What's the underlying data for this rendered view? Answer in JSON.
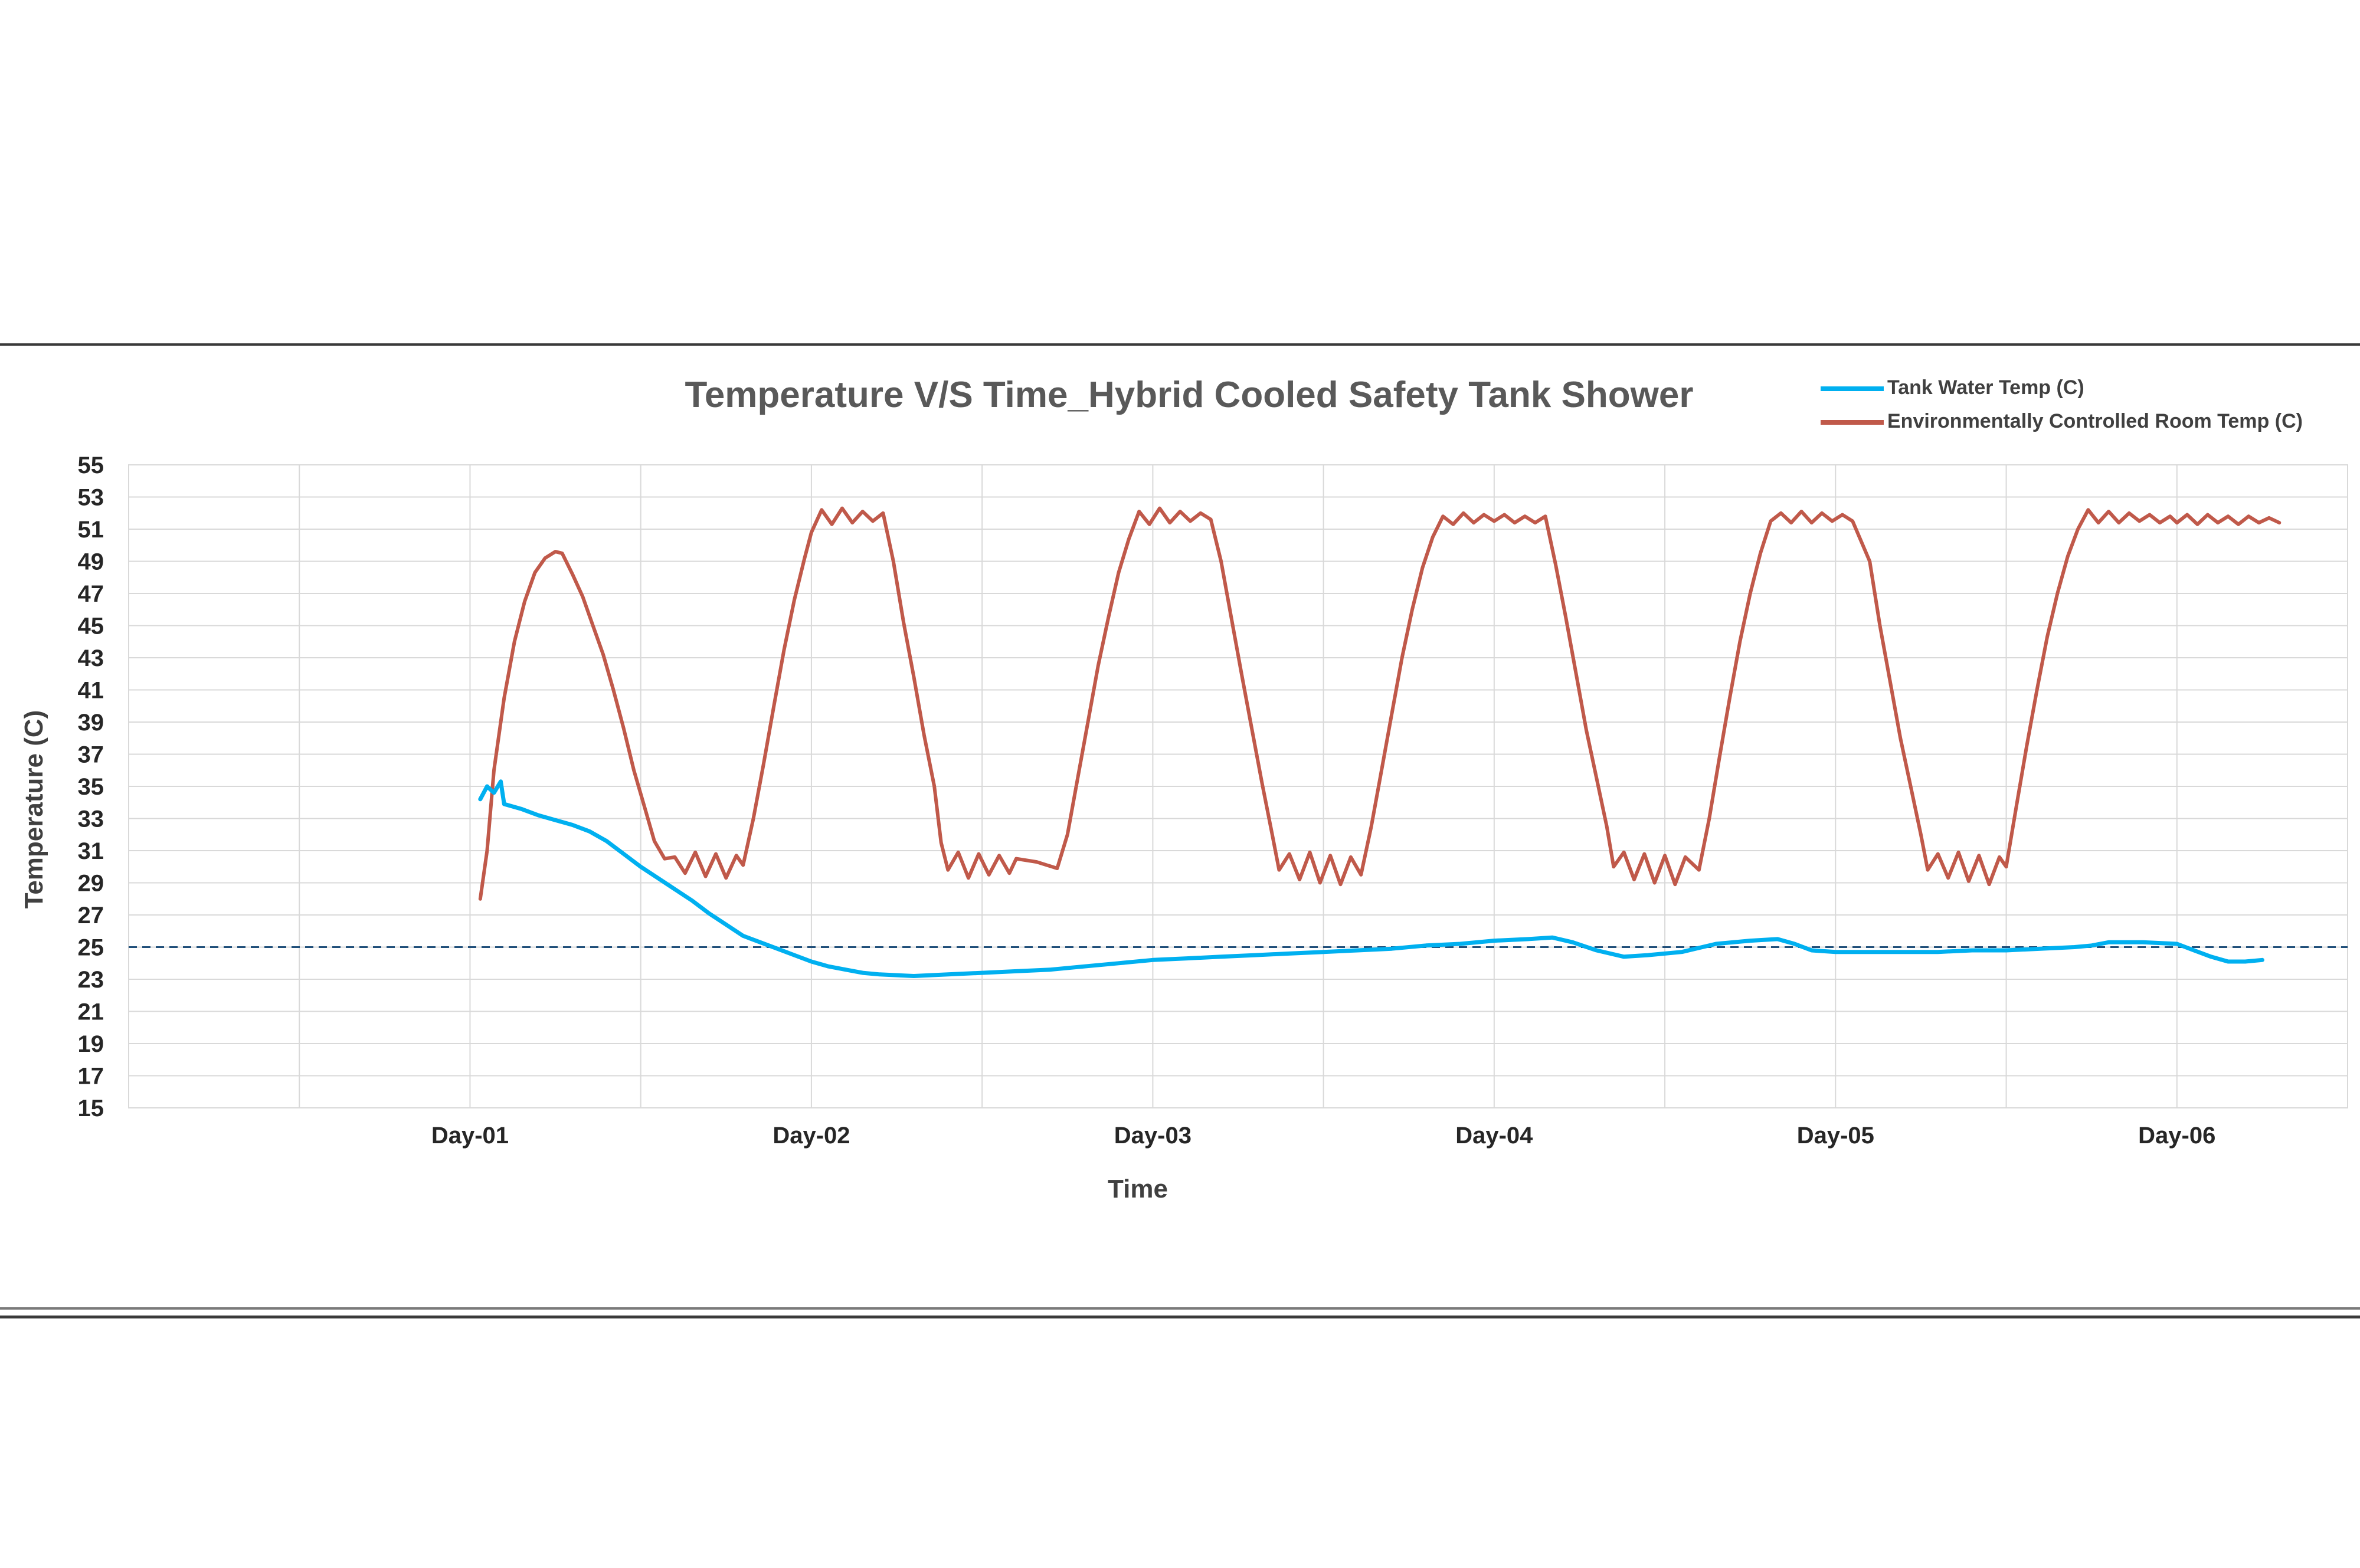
{
  "chart_data": {
    "type": "line",
    "title": "Temperature V/S Time_Hybrid Cooled Safety Tank Shower",
    "xlabel": "Time",
    "ylabel": "Temperature (C)",
    "ylim": [
      15,
      55
    ],
    "xlim": [
      0,
      6.5
    ],
    "yticks": [
      15,
      17,
      19,
      21,
      23,
      25,
      27,
      29,
      31,
      33,
      35,
      37,
      39,
      41,
      43,
      45,
      47,
      49,
      51,
      53,
      55
    ],
    "xtick_labels": [
      {
        "label": "Day-01",
        "x": 1
      },
      {
        "label": "Day-02",
        "x": 2
      },
      {
        "label": "Day-03",
        "x": 3
      },
      {
        "label": "Day-04",
        "x": 4
      },
      {
        "label": "Day-05",
        "x": 5
      },
      {
        "label": "Day-06",
        "x": 6
      }
    ],
    "reference_line": {
      "y": 25,
      "style": "dashed",
      "color": "#1F4E79"
    },
    "grid": true,
    "legend_position": "top-right",
    "series": [
      {
        "name": "Tank Water Temp (C)",
        "color": "#00B0F0",
        "points": [
          [
            1.03,
            34.2
          ],
          [
            1.05,
            35.0
          ],
          [
            1.07,
            34.6
          ],
          [
            1.09,
            35.3
          ],
          [
            1.1,
            33.9
          ],
          [
            1.15,
            33.6
          ],
          [
            1.2,
            33.2
          ],
          [
            1.25,
            32.9
          ],
          [
            1.3,
            32.6
          ],
          [
            1.35,
            32.2
          ],
          [
            1.4,
            31.6
          ],
          [
            1.45,
            30.8
          ],
          [
            1.5,
            30.0
          ],
          [
            1.55,
            29.3
          ],
          [
            1.6,
            28.6
          ],
          [
            1.65,
            27.9
          ],
          [
            1.7,
            27.1
          ],
          [
            1.75,
            26.4
          ],
          [
            1.8,
            25.7
          ],
          [
            1.85,
            25.3
          ],
          [
            1.9,
            24.9
          ],
          [
            1.95,
            24.5
          ],
          [
            2.0,
            24.1
          ],
          [
            2.05,
            23.8
          ],
          [
            2.1,
            23.6
          ],
          [
            2.15,
            23.4
          ],
          [
            2.2,
            23.3
          ],
          [
            2.3,
            23.2
          ],
          [
            2.4,
            23.3
          ],
          [
            2.5,
            23.4
          ],
          [
            2.6,
            23.5
          ],
          [
            2.7,
            23.6
          ],
          [
            2.8,
            23.8
          ],
          [
            2.9,
            24.0
          ],
          [
            3.0,
            24.2
          ],
          [
            3.1,
            24.3
          ],
          [
            3.2,
            24.4
          ],
          [
            3.3,
            24.5
          ],
          [
            3.4,
            24.6
          ],
          [
            3.5,
            24.7
          ],
          [
            3.6,
            24.8
          ],
          [
            3.7,
            24.9
          ],
          [
            3.8,
            25.1
          ],
          [
            3.9,
            25.2
          ],
          [
            4.0,
            25.4
          ],
          [
            4.1,
            25.5
          ],
          [
            4.17,
            25.6
          ],
          [
            4.23,
            25.3
          ],
          [
            4.3,
            24.8
          ],
          [
            4.38,
            24.4
          ],
          [
            4.45,
            24.5
          ],
          [
            4.55,
            24.7
          ],
          [
            4.65,
            25.2
          ],
          [
            4.75,
            25.4
          ],
          [
            4.83,
            25.5
          ],
          [
            4.88,
            25.2
          ],
          [
            4.93,
            24.8
          ],
          [
            5.0,
            24.7
          ],
          [
            5.1,
            24.7
          ],
          [
            5.2,
            24.7
          ],
          [
            5.3,
            24.7
          ],
          [
            5.4,
            24.8
          ],
          [
            5.5,
            24.8
          ],
          [
            5.6,
            24.9
          ],
          [
            5.7,
            25.0
          ],
          [
            5.75,
            25.1
          ],
          [
            5.8,
            25.3
          ],
          [
            5.9,
            25.3
          ],
          [
            6.0,
            25.2
          ],
          [
            6.05,
            24.8
          ],
          [
            6.1,
            24.4
          ],
          [
            6.15,
            24.1
          ],
          [
            6.2,
            24.1
          ],
          [
            6.25,
            24.2
          ]
        ]
      },
      {
        "name": "Environmentally Controlled Room Temp (C)",
        "color": "#C0594A",
        "points": [
          [
            1.03,
            28.0
          ],
          [
            1.05,
            31.0
          ],
          [
            1.07,
            36.0
          ],
          [
            1.1,
            40.5
          ],
          [
            1.13,
            44.0
          ],
          [
            1.16,
            46.5
          ],
          [
            1.19,
            48.3
          ],
          [
            1.22,
            49.2
          ],
          [
            1.25,
            49.6
          ],
          [
            1.27,
            49.5
          ],
          [
            1.3,
            48.2
          ],
          [
            1.33,
            46.8
          ],
          [
            1.36,
            45.0
          ],
          [
            1.39,
            43.2
          ],
          [
            1.42,
            41.0
          ],
          [
            1.45,
            38.6
          ],
          [
            1.48,
            36.0
          ],
          [
            1.51,
            33.8
          ],
          [
            1.54,
            31.6
          ],
          [
            1.57,
            30.5
          ],
          [
            1.6,
            30.6
          ],
          [
            1.63,
            29.6
          ],
          [
            1.66,
            30.9
          ],
          [
            1.69,
            29.4
          ],
          [
            1.72,
            30.8
          ],
          [
            1.75,
            29.3
          ],
          [
            1.78,
            30.7
          ],
          [
            1.8,
            30.1
          ],
          [
            1.83,
            33.0
          ],
          [
            1.86,
            36.4
          ],
          [
            1.89,
            40.0
          ],
          [
            1.92,
            43.5
          ],
          [
            1.95,
            46.6
          ],
          [
            1.98,
            49.2
          ],
          [
            2.0,
            50.8
          ],
          [
            2.03,
            52.2
          ],
          [
            2.06,
            51.3
          ],
          [
            2.09,
            52.3
          ],
          [
            2.12,
            51.4
          ],
          [
            2.15,
            52.1
          ],
          [
            2.18,
            51.5
          ],
          [
            2.21,
            52.0
          ],
          [
            2.24,
            49.0
          ],
          [
            2.27,
            45.2
          ],
          [
            2.3,
            41.8
          ],
          [
            2.33,
            38.2
          ],
          [
            2.36,
            35.0
          ],
          [
            2.38,
            31.5
          ],
          [
            2.4,
            29.8
          ],
          [
            2.43,
            30.9
          ],
          [
            2.46,
            29.3
          ],
          [
            2.49,
            30.8
          ],
          [
            2.52,
            29.5
          ],
          [
            2.55,
            30.7
          ],
          [
            2.58,
            29.6
          ],
          [
            2.6,
            30.5
          ],
          [
            2.66,
            30.3
          ],
          [
            2.72,
            29.9
          ],
          [
            2.75,
            32.0
          ],
          [
            2.78,
            35.5
          ],
          [
            2.81,
            39.0
          ],
          [
            2.84,
            42.5
          ],
          [
            2.87,
            45.5
          ],
          [
            2.9,
            48.3
          ],
          [
            2.93,
            50.4
          ],
          [
            2.96,
            52.1
          ],
          [
            2.99,
            51.3
          ],
          [
            3.02,
            52.3
          ],
          [
            3.05,
            51.4
          ],
          [
            3.08,
            52.1
          ],
          [
            3.11,
            51.5
          ],
          [
            3.14,
            52.0
          ],
          [
            3.17,
            51.6
          ],
          [
            3.2,
            49.0
          ],
          [
            3.23,
            45.5
          ],
          [
            3.26,
            42.0
          ],
          [
            3.29,
            38.6
          ],
          [
            3.32,
            35.2
          ],
          [
            3.35,
            32.0
          ],
          [
            3.37,
            29.8
          ],
          [
            3.4,
            30.8
          ],
          [
            3.43,
            29.2
          ],
          [
            3.46,
            30.9
          ],
          [
            3.49,
            29.0
          ],
          [
            3.52,
            30.7
          ],
          [
            3.55,
            28.9
          ],
          [
            3.58,
            30.6
          ],
          [
            3.61,
            29.5
          ],
          [
            3.64,
            32.5
          ],
          [
            3.67,
            36.0
          ],
          [
            3.7,
            39.5
          ],
          [
            3.73,
            43.0
          ],
          [
            3.76,
            46.0
          ],
          [
            3.79,
            48.6
          ],
          [
            3.82,
            50.5
          ],
          [
            3.85,
            51.8
          ],
          [
            3.88,
            51.3
          ],
          [
            3.91,
            52.0
          ],
          [
            3.94,
            51.4
          ],
          [
            3.97,
            51.9
          ],
          [
            4.0,
            51.5
          ],
          [
            4.03,
            51.9
          ],
          [
            4.06,
            51.4
          ],
          [
            4.09,
            51.8
          ],
          [
            4.12,
            51.4
          ],
          [
            4.15,
            51.8
          ],
          [
            4.18,
            48.8
          ],
          [
            4.21,
            45.5
          ],
          [
            4.24,
            42.0
          ],
          [
            4.27,
            38.5
          ],
          [
            4.3,
            35.5
          ],
          [
            4.33,
            32.5
          ],
          [
            4.35,
            30.0
          ],
          [
            4.38,
            30.9
          ],
          [
            4.41,
            29.2
          ],
          [
            4.44,
            30.8
          ],
          [
            4.47,
            29.0
          ],
          [
            4.5,
            30.7
          ],
          [
            4.53,
            28.9
          ],
          [
            4.56,
            30.6
          ],
          [
            4.6,
            29.8
          ],
          [
            4.63,
            33.0
          ],
          [
            4.66,
            36.8
          ],
          [
            4.69,
            40.5
          ],
          [
            4.72,
            44.0
          ],
          [
            4.75,
            47.0
          ],
          [
            4.78,
            49.5
          ],
          [
            4.81,
            51.5
          ],
          [
            4.84,
            52.0
          ],
          [
            4.87,
            51.4
          ],
          [
            4.9,
            52.1
          ],
          [
            4.93,
            51.4
          ],
          [
            4.96,
            52.0
          ],
          [
            4.99,
            51.5
          ],
          [
            5.02,
            51.9
          ],
          [
            5.05,
            51.5
          ],
          [
            5.1,
            49.0
          ],
          [
            5.13,
            45.0
          ],
          [
            5.16,
            41.5
          ],
          [
            5.19,
            38.0
          ],
          [
            5.22,
            35.0
          ],
          [
            5.25,
            32.0
          ],
          [
            5.27,
            29.8
          ],
          [
            5.3,
            30.8
          ],
          [
            5.33,
            29.3
          ],
          [
            5.36,
            30.9
          ],
          [
            5.39,
            29.1
          ],
          [
            5.42,
            30.7
          ],
          [
            5.45,
            28.9
          ],
          [
            5.48,
            30.6
          ],
          [
            5.5,
            30.0
          ],
          [
            5.53,
            33.8
          ],
          [
            5.56,
            37.5
          ],
          [
            5.59,
            41.0
          ],
          [
            5.62,
            44.3
          ],
          [
            5.65,
            47.0
          ],
          [
            5.68,
            49.3
          ],
          [
            5.71,
            51.0
          ],
          [
            5.74,
            52.2
          ],
          [
            5.77,
            51.4
          ],
          [
            5.8,
            52.1
          ],
          [
            5.83,
            51.4
          ],
          [
            5.86,
            52.0
          ],
          [
            5.89,
            51.5
          ],
          [
            5.92,
            51.9
          ],
          [
            5.95,
            51.4
          ],
          [
            5.98,
            51.8
          ],
          [
            6.0,
            51.4
          ],
          [
            6.03,
            51.9
          ],
          [
            6.06,
            51.3
          ],
          [
            6.09,
            51.9
          ],
          [
            6.12,
            51.4
          ],
          [
            6.15,
            51.8
          ],
          [
            6.18,
            51.3
          ],
          [
            6.21,
            51.8
          ],
          [
            6.24,
            51.4
          ],
          [
            6.27,
            51.7
          ],
          [
            6.3,
            51.4
          ]
        ]
      }
    ]
  }
}
